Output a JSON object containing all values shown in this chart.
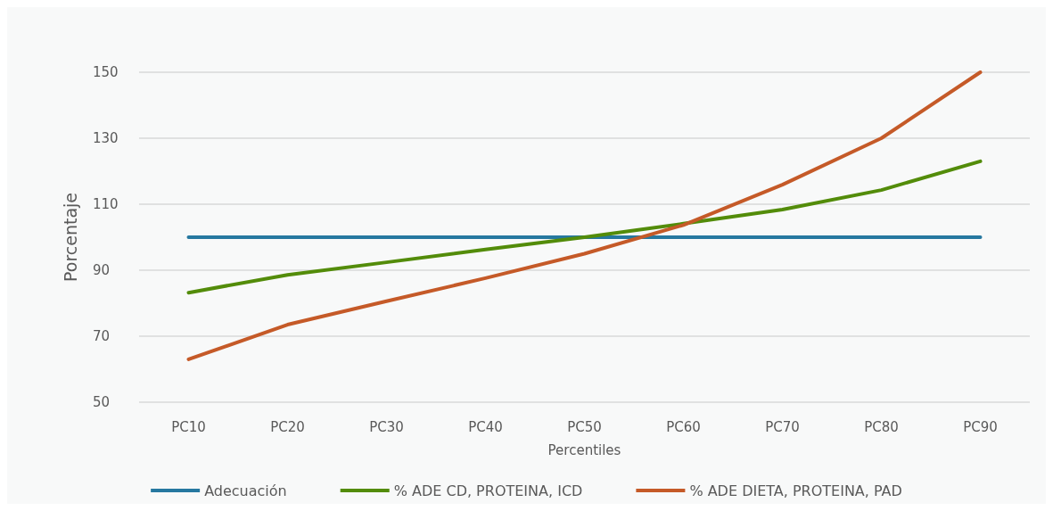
{
  "chart_data": {
    "type": "line",
    "xlabel": "Percentiles",
    "ylabel": "Porcentaje",
    "categories": [
      "PC10",
      "PC20",
      "PC30",
      "PC40",
      "PC50",
      "PC60",
      "PC70",
      "PC80",
      "PC90"
    ],
    "series": [
      {
        "name": "Adecuación",
        "color": "#2678a0",
        "values": [
          100,
          100,
          100,
          100,
          100,
          100,
          100,
          100,
          100
        ]
      },
      {
        "name": "% ADE CD, PROTEINA, ICD",
        "color": "#538c0a",
        "values": [
          83.2,
          88.6,
          92.4,
          96.3,
          100,
          104.1,
          108.4,
          114.3,
          123
        ]
      },
      {
        "name": "% ADE DIETA, PROTEINA, PAD",
        "color": "#c55a28",
        "values": [
          63,
          73.5,
          80.6,
          87.6,
          95,
          103.7,
          115.9,
          130,
          150
        ]
      }
    ],
    "ylim": [
      50,
      150
    ],
    "yticks": [
      50,
      70,
      90,
      110,
      130,
      150
    ],
    "grid": "y",
    "legend": "bottom",
    "marker": "none",
    "line_style": "solid"
  }
}
